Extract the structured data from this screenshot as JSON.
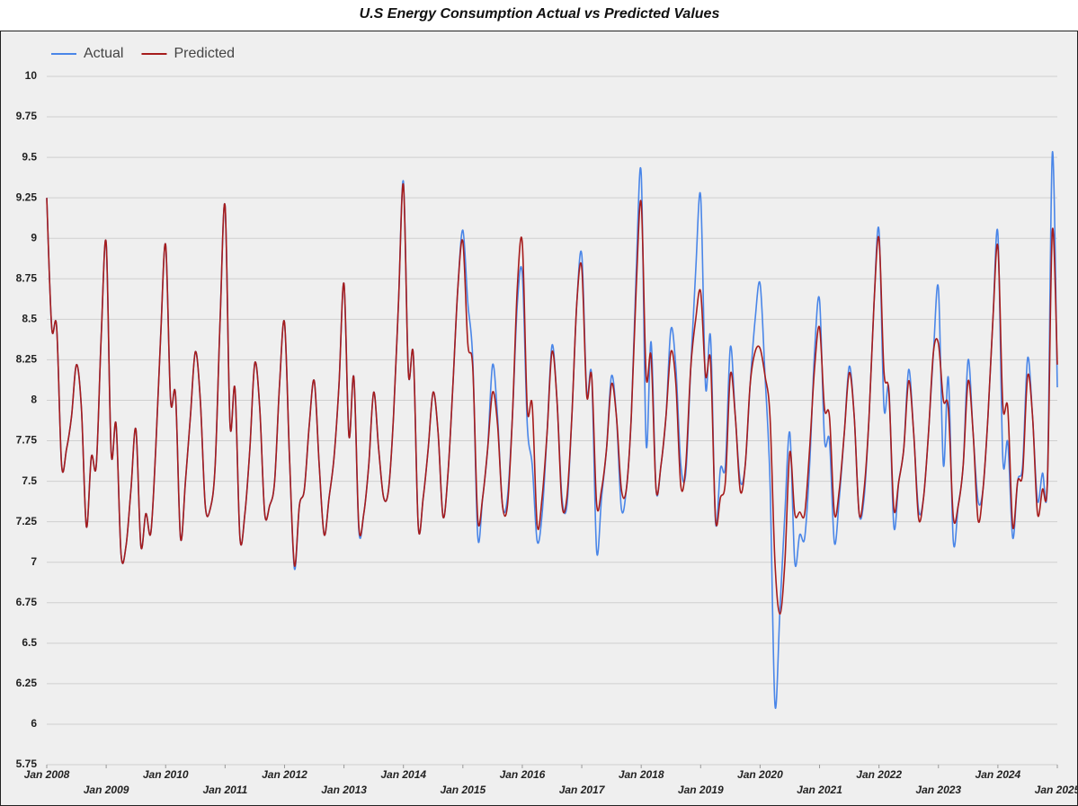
{
  "chart_data": {
    "type": "line",
    "title": "U.S Energy Consumption Actual vs Predicted Values",
    "legend": "top-left",
    "grid": true,
    "xlim": [
      "2008-01",
      "2025-01"
    ],
    "ylim": [
      5.75,
      10
    ],
    "yticks": [
      5.75,
      6,
      6.25,
      6.5,
      6.75,
      7,
      7.25,
      7.5,
      7.75,
      8,
      8.25,
      8.5,
      8.75,
      9,
      9.25,
      9.5,
      9.75,
      10
    ],
    "xticks": [
      {
        "value": "2008-01",
        "label": "Jan 2008"
      },
      {
        "value": "2009-01",
        "label": "Jan 2009"
      },
      {
        "value": "2010-01",
        "label": "Jan 2010"
      },
      {
        "value": "2011-01",
        "label": "Jan 2011"
      },
      {
        "value": "2012-01",
        "label": "Jan 2012"
      },
      {
        "value": "2013-01",
        "label": "Jan 2013"
      },
      {
        "value": "2014-01",
        "label": "Jan 2014"
      },
      {
        "value": "2015-01",
        "label": "Jan 2015"
      },
      {
        "value": "2016-01",
        "label": "Jan 2016"
      },
      {
        "value": "2017-01",
        "label": "Jan 2017"
      },
      {
        "value": "2018-01",
        "label": "Jan 2018"
      },
      {
        "value": "2019-01",
        "label": "Jan 2019"
      },
      {
        "value": "2020-01",
        "label": "Jan 2020"
      },
      {
        "value": "2021-01",
        "label": "Jan 2021"
      },
      {
        "value": "2022-01",
        "label": "Jan 2022"
      },
      {
        "value": "2023-01",
        "label": "Jan 2023"
      },
      {
        "value": "2024-01",
        "label": "Jan 2024"
      },
      {
        "value": "2025-01",
        "label": "Jan 2025"
      }
    ],
    "x": [
      "2008-01",
      "2008-02",
      "2008-03",
      "2008-04",
      "2008-05",
      "2008-06",
      "2008-07",
      "2008-08",
      "2008-09",
      "2008-10",
      "2008-11",
      "2008-12",
      "2009-01",
      "2009-02",
      "2009-03",
      "2009-04",
      "2009-05",
      "2009-06",
      "2009-07",
      "2009-08",
      "2009-09",
      "2009-10",
      "2009-11",
      "2009-12",
      "2010-01",
      "2010-02",
      "2010-03",
      "2010-04",
      "2010-05",
      "2010-06",
      "2010-07",
      "2010-08",
      "2010-09",
      "2010-10",
      "2010-11",
      "2010-12",
      "2011-01",
      "2011-02",
      "2011-03",
      "2011-04",
      "2011-05",
      "2011-06",
      "2011-07",
      "2011-08",
      "2011-09",
      "2011-10",
      "2011-11",
      "2011-12",
      "2012-01",
      "2012-02",
      "2012-03",
      "2012-04",
      "2012-05",
      "2012-06",
      "2012-07",
      "2012-08",
      "2012-09",
      "2012-10",
      "2012-11",
      "2012-12",
      "2013-01",
      "2013-02",
      "2013-03",
      "2013-04",
      "2013-05",
      "2013-06",
      "2013-07",
      "2013-08",
      "2013-09",
      "2013-10",
      "2013-11",
      "2013-12",
      "2014-01",
      "2014-02",
      "2014-03",
      "2014-04",
      "2014-05",
      "2014-06",
      "2014-07",
      "2014-08",
      "2014-09",
      "2014-10",
      "2014-11",
      "2014-12",
      "2015-01",
      "2015-02",
      "2015-03",
      "2015-04",
      "2015-05",
      "2015-06",
      "2015-07",
      "2015-08",
      "2015-09",
      "2015-10",
      "2015-11",
      "2015-12",
      "2016-01",
      "2016-02",
      "2016-03",
      "2016-04",
      "2016-05",
      "2016-06",
      "2016-07",
      "2016-08",
      "2016-09",
      "2016-10",
      "2016-11",
      "2016-12",
      "2017-01",
      "2017-02",
      "2017-03",
      "2017-04",
      "2017-05",
      "2017-06",
      "2017-07",
      "2017-08",
      "2017-09",
      "2017-10",
      "2017-11",
      "2017-12",
      "2018-01",
      "2018-02",
      "2018-03",
      "2018-04",
      "2018-05",
      "2018-06",
      "2018-07",
      "2018-08",
      "2018-09",
      "2018-10",
      "2018-11",
      "2018-12",
      "2019-01",
      "2019-02",
      "2019-03",
      "2019-04",
      "2019-05",
      "2019-06",
      "2019-07",
      "2019-08",
      "2019-09",
      "2019-10",
      "2019-11",
      "2019-12",
      "2020-01",
      "2020-02",
      "2020-03",
      "2020-04",
      "2020-05",
      "2020-06",
      "2020-07",
      "2020-08",
      "2020-09",
      "2020-10",
      "2020-11",
      "2020-12",
      "2021-01",
      "2021-02",
      "2021-03",
      "2021-04",
      "2021-05",
      "2021-06",
      "2021-07",
      "2021-08",
      "2021-09",
      "2021-10",
      "2021-11",
      "2021-12",
      "2022-01",
      "2022-02",
      "2022-03",
      "2022-04",
      "2022-05",
      "2022-06",
      "2022-07",
      "2022-08",
      "2022-09",
      "2022-10",
      "2022-11",
      "2022-12",
      "2023-01",
      "2023-02",
      "2023-03",
      "2023-04",
      "2023-05",
      "2023-06",
      "2023-07",
      "2023-08",
      "2023-09",
      "2023-10",
      "2023-11",
      "2023-12",
      "2024-01",
      "2024-02",
      "2024-03",
      "2024-04",
      "2024-05",
      "2024-06",
      "2024-07",
      "2024-08",
      "2024-09",
      "2024-10",
      "2024-11",
      "2024-12",
      "2025-01"
    ],
    "series": [
      {
        "name": "Actual",
        "color": "#4a86e8",
        "values": [
          9.25,
          8.45,
          8.45,
          7.6,
          7.7,
          7.9,
          8.22,
          7.95,
          7.22,
          7.65,
          7.6,
          8.4,
          8.97,
          7.68,
          7.85,
          7.05,
          7.1,
          7.45,
          7.82,
          7.1,
          7.3,
          7.18,
          7.7,
          8.4,
          8.96,
          8.0,
          8.03,
          7.15,
          7.5,
          7.9,
          8.3,
          8.0,
          7.35,
          7.33,
          7.6,
          8.5,
          9.2,
          7.85,
          8.07,
          7.15,
          7.3,
          7.7,
          8.23,
          7.95,
          7.3,
          7.35,
          7.5,
          8.1,
          8.48,
          7.65,
          6.96,
          7.35,
          7.45,
          7.85,
          8.12,
          7.6,
          7.17,
          7.4,
          7.65,
          8.1,
          8.72,
          7.78,
          8.14,
          7.2,
          7.3,
          7.6,
          8.05,
          7.7,
          7.4,
          7.45,
          7.9,
          8.6,
          9.35,
          8.17,
          8.28,
          7.22,
          7.4,
          7.7,
          8.05,
          7.8,
          7.28,
          7.55,
          8.1,
          8.7,
          9.05,
          8.6,
          8.25,
          7.16,
          7.4,
          7.7,
          8.22,
          7.9,
          7.35,
          7.4,
          7.9,
          8.6,
          8.78,
          7.85,
          7.6,
          7.13,
          7.3,
          7.8,
          8.34,
          8.0,
          7.4,
          7.35,
          7.9,
          8.6,
          8.9,
          8.05,
          8.15,
          7.07,
          7.4,
          7.7,
          8.15,
          7.9,
          7.33,
          7.45,
          7.9,
          8.8,
          9.4,
          7.73,
          8.36,
          7.45,
          7.6,
          7.9,
          8.44,
          8.2,
          7.6,
          7.55,
          8.2,
          8.8,
          9.26,
          8.08,
          8.39,
          7.25,
          7.58,
          7.6,
          8.33,
          7.9,
          7.5,
          7.6,
          8.1,
          8.5,
          8.72,
          8.15,
          7.5,
          6.12,
          6.7,
          7.3,
          7.8,
          7.0,
          7.17,
          7.15,
          7.6,
          8.3,
          8.62,
          7.76,
          7.75,
          7.12,
          7.4,
          7.8,
          8.21,
          7.9,
          7.3,
          7.4,
          7.9,
          8.6,
          9.05,
          7.96,
          8.07,
          7.22,
          7.5,
          7.7,
          8.19,
          7.8,
          7.32,
          7.4,
          7.8,
          8.3,
          8.69,
          7.6,
          8.14,
          7.13,
          7.35,
          7.6,
          8.25,
          7.8,
          7.38,
          7.45,
          7.9,
          8.5,
          9.03,
          7.64,
          7.74,
          7.15,
          7.5,
          7.6,
          8.26,
          7.9,
          7.38,
          7.55,
          7.5,
          9.53,
          8.08
        ]
      },
      {
        "name": "Predicted",
        "color": "#a61c1c",
        "values": [
          9.25,
          8.45,
          8.45,
          7.6,
          7.7,
          7.9,
          8.22,
          7.95,
          7.22,
          7.65,
          7.6,
          8.4,
          8.97,
          7.68,
          7.85,
          7.05,
          7.1,
          7.45,
          7.82,
          7.1,
          7.3,
          7.18,
          7.7,
          8.4,
          8.96,
          8.0,
          8.03,
          7.15,
          7.5,
          7.9,
          8.3,
          8.0,
          7.35,
          7.33,
          7.6,
          8.5,
          9.2,
          7.85,
          8.07,
          7.15,
          7.3,
          7.7,
          8.23,
          7.95,
          7.3,
          7.35,
          7.5,
          8.1,
          8.48,
          7.65,
          6.98,
          7.35,
          7.45,
          7.85,
          8.12,
          7.6,
          7.17,
          7.4,
          7.65,
          8.1,
          8.72,
          7.78,
          8.14,
          7.22,
          7.3,
          7.6,
          8.05,
          7.7,
          7.4,
          7.45,
          7.9,
          8.6,
          9.33,
          8.17,
          8.28,
          7.22,
          7.4,
          7.7,
          8.05,
          7.8,
          7.28,
          7.55,
          8.1,
          8.7,
          8.98,
          8.35,
          8.2,
          7.27,
          7.4,
          7.7,
          8.05,
          7.85,
          7.35,
          7.35,
          7.9,
          8.7,
          8.97,
          7.95,
          7.97,
          7.23,
          7.4,
          7.8,
          8.3,
          8.0,
          7.36,
          7.4,
          7.9,
          8.6,
          8.82,
          8.03,
          8.15,
          7.36,
          7.45,
          7.7,
          8.1,
          7.9,
          7.45,
          7.45,
          7.9,
          8.7,
          9.22,
          8.15,
          8.27,
          7.45,
          7.6,
          7.9,
          8.3,
          8.1,
          7.47,
          7.6,
          8.2,
          8.5,
          8.67,
          8.15,
          8.24,
          7.27,
          7.4,
          7.5,
          8.16,
          7.9,
          7.44,
          7.6,
          8.1,
          8.3,
          8.32,
          8.15,
          7.9,
          7.0,
          6.68,
          7.0,
          7.68,
          7.3,
          7.31,
          7.3,
          7.7,
          8.2,
          8.45,
          7.95,
          7.9,
          7.3,
          7.45,
          7.8,
          8.17,
          7.9,
          7.3,
          7.45,
          7.9,
          8.6,
          9.0,
          8.18,
          8.05,
          7.33,
          7.5,
          7.7,
          8.12,
          7.8,
          7.27,
          7.4,
          7.8,
          8.3,
          8.35,
          8.0,
          7.95,
          7.28,
          7.35,
          7.6,
          8.12,
          7.8,
          7.26,
          7.45,
          7.9,
          8.5,
          8.95,
          7.97,
          7.95,
          7.22,
          7.5,
          7.55,
          8.15,
          7.9,
          7.3,
          7.45,
          7.5,
          9.05,
          8.22
        ]
      }
    ]
  }
}
